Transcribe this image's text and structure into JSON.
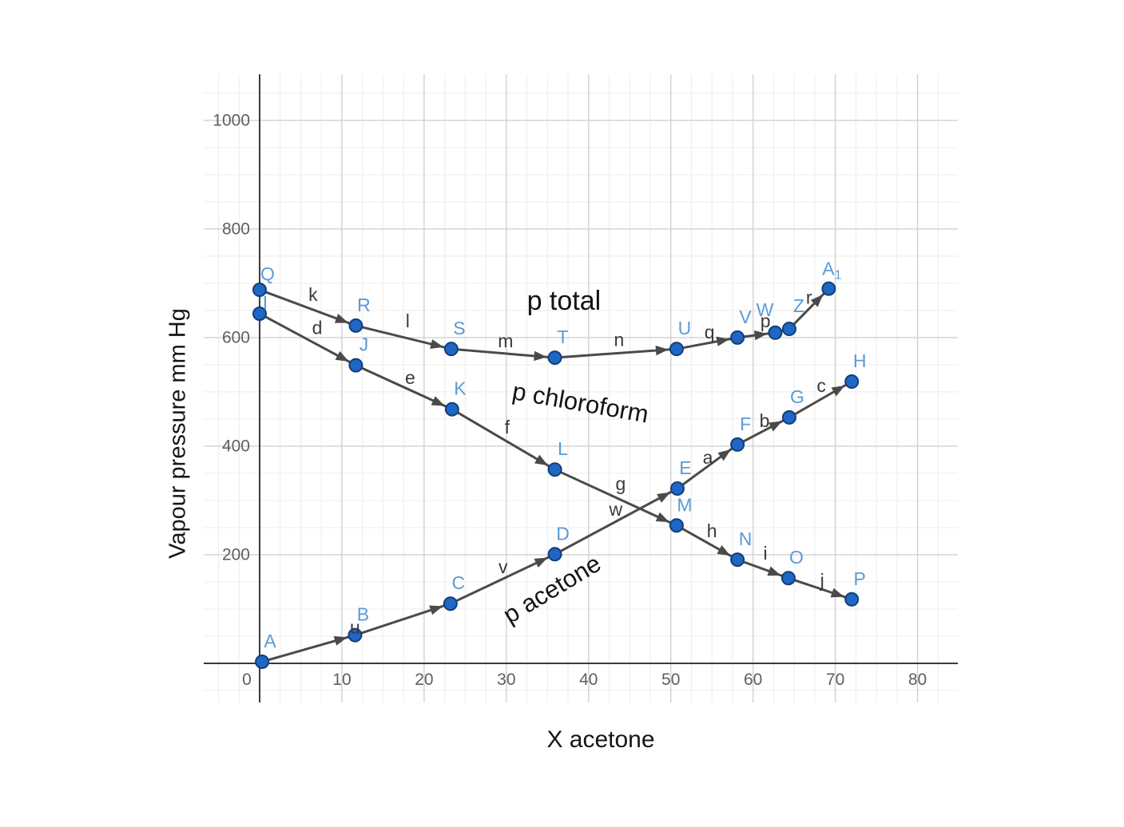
{
  "chart_data": {
    "type": "scatter",
    "title": "",
    "xlabel": "X acetone",
    "ylabel": "Vapour pressure mm Hg",
    "xlim": [
      -6.8,
      84.9
    ],
    "ylim": [
      -72,
      1085
    ],
    "x_major_ticks": [
      0,
      10,
      20,
      30,
      40,
      50,
      60,
      70,
      80
    ],
    "y_major_ticks": [
      200,
      400,
      600,
      800,
      1000
    ],
    "origin_tick_label": "0",
    "x_minor_step": 2.5,
    "y_minor_step": 50,
    "grid": true,
    "legend": "none",
    "colors": {
      "point_fill": "#2066c4",
      "point_stroke": "#123f77",
      "point_label": "#5b9bd5",
      "line": "#4a4a4a",
      "segment_label": "#3a3a3a",
      "grid_major": "#d2d2d2",
      "grid_minor": "#ececec",
      "axis": "#3b3b3b",
      "tick_label": "#5f5f5f",
      "series_label": "#141414",
      "background": "#ffffff"
    },
    "series": [
      {
        "name": "p acetone",
        "points": [
          {
            "label": "A",
            "x": 0.3,
            "y": 3
          },
          {
            "label": "B",
            "x": 11.6,
            "y": 52
          },
          {
            "label": "C",
            "x": 23.2,
            "y": 110
          },
          {
            "label": "D",
            "x": 35.9,
            "y": 201
          },
          {
            "label": "E",
            "x": 50.8,
            "y": 322
          },
          {
            "label": "F",
            "x": 58.1,
            "y": 403
          },
          {
            "label": "G",
            "x": 64.4,
            "y": 453
          },
          {
            "label": "H",
            "x": 72.0,
            "y": 519
          }
        ]
      },
      {
        "name": "p chloroform",
        "points": [
          {
            "label": "I",
            "x": 0.0,
            "y": 644,
            "ldx": 7,
            "ldy": -6
          },
          {
            "label": "J",
            "x": 11.7,
            "y": 549
          },
          {
            "label": "K",
            "x": 23.4,
            "y": 468
          },
          {
            "label": "L",
            "x": 35.9,
            "y": 357
          },
          {
            "label": "M",
            "x": 50.7,
            "y": 254
          },
          {
            "label": "N",
            "x": 58.1,
            "y": 191
          },
          {
            "label": "O",
            "x": 64.3,
            "y": 157
          },
          {
            "label": "P",
            "x": 72.0,
            "y": 118
          }
        ]
      },
      {
        "name": "p total",
        "points": [
          {
            "label": "Q",
            "x": 0.0,
            "y": 688,
            "ldx": 10,
            "ldy": -12
          },
          {
            "label": "R",
            "x": 11.7,
            "y": 622
          },
          {
            "label": "S",
            "x": 23.3,
            "y": 579
          },
          {
            "label": "T",
            "x": 35.9,
            "y": 563
          },
          {
            "label": "U",
            "x": 50.7,
            "y": 579
          },
          {
            "label": "V",
            "x": 58.1,
            "y": 600
          },
          {
            "label": "W",
            "x": 62.7,
            "y": 609,
            "ldx": -13,
            "ldy": -21
          },
          {
            "label": "Z",
            "x": 64.4,
            "y": 616,
            "ldx": 12,
            "ldy": -21
          },
          {
            "label": "A",
            "sub": "1",
            "x": 69.2,
            "y": 690,
            "ldx": 4,
            "ldy": -17
          }
        ]
      }
    ],
    "segment_labels": [
      {
        "text": "u",
        "x": 11.6,
        "y": 66
      },
      {
        "text": "v",
        "x": 29.6,
        "y": 178
      },
      {
        "text": "w",
        "x": 43.3,
        "y": 284
      },
      {
        "text": "a",
        "x": 54.5,
        "y": 379
      },
      {
        "text": "b",
        "x": 61.4,
        "y": 447
      },
      {
        "text": "c",
        "x": 68.3,
        "y": 512
      },
      {
        "text": "d",
        "x": 7.0,
        "y": 618
      },
      {
        "text": "e",
        "x": 18.3,
        "y": 526
      },
      {
        "text": "f",
        "x": 30.1,
        "y": 435
      },
      {
        "text": "g",
        "x": 43.9,
        "y": 331
      },
      {
        "text": "h",
        "x": 55.0,
        "y": 244
      },
      {
        "text": "i",
        "x": 61.5,
        "y": 203
      },
      {
        "text": "j",
        "x": 68.4,
        "y": 153
      },
      {
        "text": "k",
        "x": 6.5,
        "y": 679
      },
      {
        "text": "l",
        "x": 18.0,
        "y": 631
      },
      {
        "text": "m",
        "x": 29.9,
        "y": 594
      },
      {
        "text": "n",
        "x": 43.7,
        "y": 596
      },
      {
        "text": "q",
        "x": 54.7,
        "y": 610
      },
      {
        "text": "p",
        "x": 61.5,
        "y": 631
      },
      {
        "text": "r",
        "x": 66.8,
        "y": 674
      }
    ],
    "series_labels": [
      {
        "text": "p total",
        "x": 32.5,
        "y": 651,
        "rotate": 0,
        "size": 34
      },
      {
        "text": "p chloroform",
        "x": 30.6,
        "y": 487,
        "rotate": 10,
        "size": 31
      },
      {
        "text": "p acetone",
        "x": 30.4,
        "y": 72,
        "rotate": -31,
        "size": 31
      }
    ]
  }
}
